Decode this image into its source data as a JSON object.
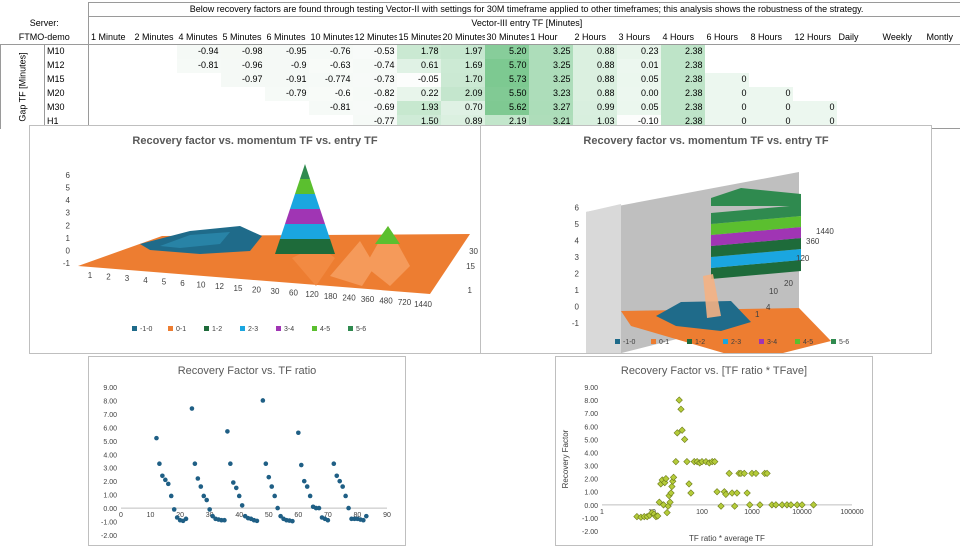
{
  "table": {
    "caption": "Below recovery factors are found through testing Vector-II with settings for 30M timeframe applied to other timeframes; this analysis shows the robustness of the strategy.",
    "server_label": "Server:",
    "server_value": "FTMO-demo",
    "entry_header": "Vector-III entry TF [Minutes]",
    "gap_header": "Gap TF [Minutes]",
    "columns": [
      "1 Minute",
      "2 Minutes",
      "4 Minutes",
      "5 Minutes",
      "6 Minutes",
      "10 Minutes",
      "12 Minutes",
      "15 Minutes",
      "20 Minutes",
      "30 Minutes",
      "1 Hour",
      "2 Hours",
      "3 Hours",
      "4 Hours",
      "6 Hours",
      "8 Hours",
      "12 Hours",
      "Daily",
      "Weekly",
      "Montly"
    ],
    "rows": [
      {
        "label": "M10",
        "values": [
          "",
          "",
          "-0.94",
          "-0.98",
          "-0.95",
          "-0.76",
          "-0.53",
          "1.78",
          "1.97",
          "5.20",
          "3.25",
          "0.88",
          "0.23",
          "2.38",
          "",
          "",
          "",
          "",
          "",
          ""
        ]
      },
      {
        "label": "M12",
        "values": [
          "",
          "",
          "-0.81",
          "-0.96",
          "-0.9",
          "-0.63",
          "-0.74",
          "0.61",
          "1.69",
          "5.70",
          "3.25",
          "0.88",
          "0.01",
          "2.38",
          "",
          "",
          "",
          "",
          "",
          ""
        ]
      },
      {
        "label": "M15",
        "values": [
          "",
          "",
          "",
          "-0.97",
          "-0.91",
          "-0.774",
          "-0.73",
          "-0.05",
          "1.70",
          "5.73",
          "3.25",
          "0.88",
          "0.05",
          "2.38",
          "0",
          "",
          "",
          "",
          "",
          ""
        ]
      },
      {
        "label": "M20",
        "values": [
          "",
          "",
          "",
          "",
          "-0.79",
          "-0.6",
          "-0.82",
          "0.22",
          "2.09",
          "5.50",
          "3.23",
          "0.88",
          "0.00",
          "2.38",
          "0",
          "0",
          "",
          "",
          "",
          ""
        ]
      },
      {
        "label": "M30",
        "values": [
          "",
          "",
          "",
          "",
          "",
          "-0.81",
          "-0.69",
          "1.93",
          "0.70",
          "5.62",
          "3.27",
          "0.99",
          "0.05",
          "2.38",
          "0",
          "0",
          "0",
          "",
          "",
          ""
        ]
      },
      {
        "label": "H1",
        "values": [
          "",
          "",
          "",
          "",
          "",
          "",
          "-0.77",
          "1.50",
          "0.89",
          "2.19",
          "3.21",
          "1.03",
          "-0.10",
          "2.38",
          "0",
          "0",
          "0",
          "",
          "",
          ""
        ]
      }
    ]
  },
  "chart_data": [
    {
      "type": "surface",
      "title_parts": [
        "Recovery factor",
        " vs. ",
        "momentum TF",
        " vs. ",
        "entry TF"
      ],
      "zlim": [
        -1,
        6
      ],
      "z_ticks": [
        "-1",
        "0",
        "1",
        "2",
        "3",
        "4",
        "5",
        "6"
      ],
      "x_ticks": [
        "1",
        "2",
        "3",
        "4",
        "5",
        "6",
        "10",
        "12",
        "15",
        "20",
        "30",
        "60",
        "120",
        "180",
        "240",
        "360",
        "480",
        "720",
        "1440"
      ],
      "y_ticks": [
        "1",
        "15",
        "30"
      ],
      "legend": [
        "-1-0",
        "0-1",
        "1-2",
        "2-3",
        "3-4",
        "4-5",
        "5-6"
      ],
      "legend_colors": [
        "#1f6b8a",
        "#ed7d31",
        "#1e6b3a",
        "#1aa6e0",
        "#a035b4",
        "#5bbf2f",
        "#2f8a4f"
      ]
    },
    {
      "type": "surface",
      "title_parts": [
        "Recovery factor",
        " vs. ",
        "momentum TF",
        " vs. ",
        "entry TF"
      ],
      "zlim": [
        -1,
        6
      ],
      "z_ticks": [
        "-1",
        "0",
        "1",
        "2",
        "3",
        "4",
        "5",
        "6"
      ],
      "y_ticks": [
        "1",
        "4",
        "10",
        "20",
        "120",
        "360",
        "1440"
      ],
      "legend": [
        "-1-0",
        "0-1",
        "1-2",
        "2-3",
        "3-4",
        "4-5",
        "5-6"
      ],
      "legend_colors": [
        "#1f6b8a",
        "#ed7d31",
        "#1e6b3a",
        "#1aa6e0",
        "#a035b4",
        "#5bbf2f",
        "#2f8a4f"
      ]
    },
    {
      "type": "scatter",
      "title": "Recovery Factor vs. TF ratio",
      "xlim": [
        0,
        90
      ],
      "ylim": [
        -2,
        9
      ],
      "x_ticks": [
        "0",
        "10",
        "20",
        "30",
        "40",
        "50",
        "60",
        "70",
        "80",
        "90"
      ],
      "y_ticks": [
        "-2.00",
        "-1.00",
        "0.00",
        "1.00",
        "2.00",
        "3.00",
        "4.00",
        "5.00",
        "6.00",
        "7.00",
        "8.00",
        "9.00"
      ],
      "color": "#1f5f85",
      "points": [
        [
          12,
          5.2
        ],
        [
          13,
          3.3
        ],
        [
          14,
          2.4
        ],
        [
          15,
          2.1
        ],
        [
          16,
          1.8
        ],
        [
          17,
          0.9
        ],
        [
          18,
          -0.1
        ],
        [
          19,
          -0.7
        ],
        [
          20,
          -0.9
        ],
        [
          21,
          -0.95
        ],
        [
          22,
          -0.8
        ],
        [
          24,
          7.4
        ],
        [
          25,
          3.3
        ],
        [
          26,
          2.2
        ],
        [
          27,
          1.6
        ],
        [
          28,
          0.9
        ],
        [
          29,
          0.6
        ],
        [
          30,
          -0.1
        ],
        [
          31,
          -0.6
        ],
        [
          32,
          -0.8
        ],
        [
          33,
          -0.85
        ],
        [
          34,
          -0.9
        ],
        [
          35,
          -0.9
        ],
        [
          36,
          5.7
        ],
        [
          37,
          3.3
        ],
        [
          38,
          1.9
        ],
        [
          39,
          1.5
        ],
        [
          40,
          0.9
        ],
        [
          41,
          0.2
        ],
        [
          42,
          -0.6
        ],
        [
          43,
          -0.75
        ],
        [
          44,
          -0.8
        ],
        [
          45,
          -0.9
        ],
        [
          46,
          -0.95
        ],
        [
          48,
          8.0
        ],
        [
          49,
          3.3
        ],
        [
          50,
          2.3
        ],
        [
          51,
          1.6
        ],
        [
          52,
          0.9
        ],
        [
          53,
          0.0
        ],
        [
          54,
          -0.6
        ],
        [
          55,
          -0.8
        ],
        [
          56,
          -0.9
        ],
        [
          57,
          -0.93
        ],
        [
          58,
          -0.97
        ],
        [
          60,
          5.6
        ],
        [
          61,
          3.2
        ],
        [
          62,
          2.0
        ],
        [
          63,
          1.6
        ],
        [
          64,
          0.9
        ],
        [
          65,
          0.1
        ],
        [
          66,
          0.0
        ],
        [
          67,
          0.0
        ],
        [
          68,
          -0.7
        ],
        [
          69,
          -0.8
        ],
        [
          70,
          -0.9
        ],
        [
          72,
          3.3
        ],
        [
          73,
          2.4
        ],
        [
          74,
          2.0
        ],
        [
          75,
          1.6
        ],
        [
          76,
          0.9
        ],
        [
          77,
          0.0
        ],
        [
          78,
          -0.8
        ],
        [
          79,
          -0.8
        ],
        [
          80,
          -0.8
        ],
        [
          81,
          -0.85
        ],
        [
          82,
          -0.9
        ],
        [
          83,
          -0.6
        ]
      ]
    },
    {
      "type": "scatter",
      "title": "Recovery Factor vs. [TF ratio * TFave]",
      "xscale": "log",
      "xlim": [
        1,
        100000
      ],
      "ylim": [
        -2,
        9
      ],
      "x_ticks": [
        "1",
        "10",
        "100",
        "1000",
        "10000",
        "100000"
      ],
      "y_ticks": [
        "-2.00",
        "-1.00",
        "0.00",
        "1.00",
        "2.00",
        "3.00",
        "4.00",
        "5.00",
        "6.00",
        "7.00",
        "8.00",
        "9.00"
      ],
      "xlabel": "TF ratio * average TF",
      "ylabel": "Recovery Factor",
      "color": "#b5cc3a",
      "points": [
        [
          5,
          -0.9
        ],
        [
          6,
          -0.95
        ],
        [
          7,
          -0.9
        ],
        [
          8,
          -0.9
        ],
        [
          9,
          -0.8
        ],
        [
          10,
          -0.6
        ],
        [
          11,
          -0.7
        ],
        [
          12,
          -0.9
        ],
        [
          13,
          -0.85
        ],
        [
          14,
          0.2
        ],
        [
          15,
          1.6
        ],
        [
          16,
          1.9
        ],
        [
          17,
          0.0
        ],
        [
          18,
          1.7
        ],
        [
          19,
          2.0
        ],
        [
          20,
          -0.6
        ],
        [
          21,
          -0.1
        ],
        [
          22,
          0.7
        ],
        [
          23,
          0.2
        ],
        [
          24,
          0.9
        ],
        [
          25,
          1.4
        ],
        [
          26,
          1.8
        ],
        [
          27,
          2.1
        ],
        [
          30,
          3.3
        ],
        [
          32,
          5.5
        ],
        [
          35,
          8.0
        ],
        [
          38,
          7.3
        ],
        [
          40,
          5.7
        ],
        [
          45,
          5.0
        ],
        [
          50,
          3.3
        ],
        [
          55,
          1.6
        ],
        [
          60,
          0.9
        ],
        [
          70,
          3.3
        ],
        [
          80,
          3.3
        ],
        [
          90,
          3.2
        ],
        [
          100,
          3.3
        ],
        [
          120,
          3.3
        ],
        [
          140,
          3.2
        ],
        [
          160,
          3.3
        ],
        [
          180,
          3.3
        ],
        [
          200,
          1.0
        ],
        [
          240,
          -0.1
        ],
        [
          280,
          1.0
        ],
        [
          300,
          0.8
        ],
        [
          350,
          2.4
        ],
        [
          400,
          0.9
        ],
        [
          450,
          -0.1
        ],
        [
          500,
          0.9
        ],
        [
          550,
          2.4
        ],
        [
          600,
          2.4
        ],
        [
          700,
          2.4
        ],
        [
          800,
          0.9
        ],
        [
          900,
          0.0
        ],
        [
          1000,
          2.4
        ],
        [
          1200,
          2.4
        ],
        [
          1440,
          0.0
        ],
        [
          1800,
          2.4
        ],
        [
          2000,
          2.4
        ],
        [
          2500,
          0.0
        ],
        [
          3000,
          0.0
        ],
        [
          4000,
          0.0
        ],
        [
          5000,
          0.0
        ],
        [
          6000,
          0.0
        ],
        [
          8000,
          0.0
        ],
        [
          10000,
          0.0
        ],
        [
          17000,
          0.0
        ]
      ]
    }
  ]
}
